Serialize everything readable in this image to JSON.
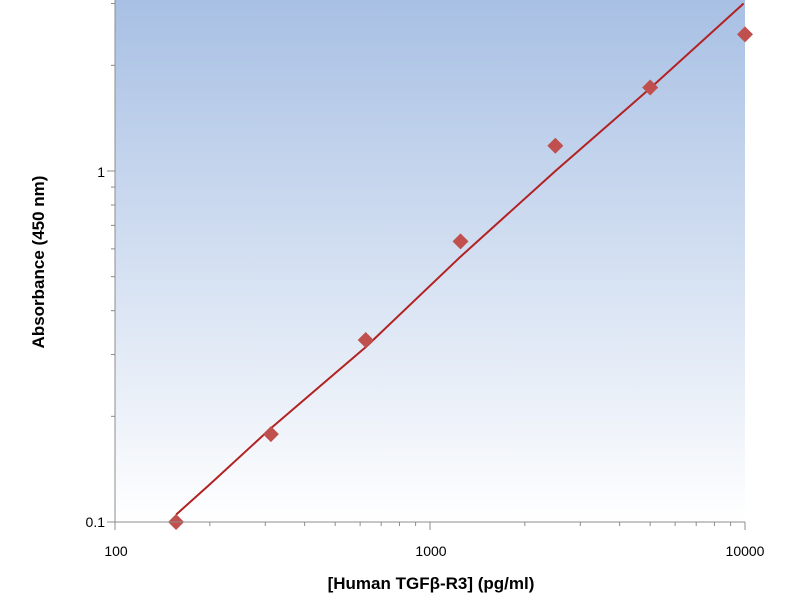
{
  "chart_data": {
    "type": "scatter",
    "title": "",
    "xlabel": "[Human TGFβ-R3] (pg/ml)",
    "ylabel": "Absorbance (450 nm)",
    "x_scale": "log",
    "y_scale": "log",
    "xlim": [
      100,
      10000
    ],
    "ylim": [
      0.1,
      3.0
    ],
    "x_tick_labels": [
      "100",
      "1000",
      "10000"
    ],
    "y_tick_labels": [
      "0.1",
      "1"
    ],
    "grid": false,
    "legend": "none",
    "background": "gradient from #a8c0e4 (top) to #ffffff (bottom)",
    "series": [
      {
        "type": "scatter",
        "marker": "diamond",
        "color": "#c0504d",
        "x": [
          156.25,
          312.5,
          625,
          1250,
          2500,
          5000,
          10000
        ],
        "y": [
          0.1,
          0.178,
          0.33,
          0.63,
          1.18,
          1.73,
          2.45
        ]
      },
      {
        "type": "line",
        "color": "#b22222",
        "x": [
          156.25,
          200,
          312.5,
          625,
          1250,
          2500,
          5000,
          9900
        ],
        "y": [
          0.105,
          0.128,
          0.185,
          0.315,
          0.57,
          1.0,
          1.72,
          3.0
        ]
      }
    ]
  }
}
